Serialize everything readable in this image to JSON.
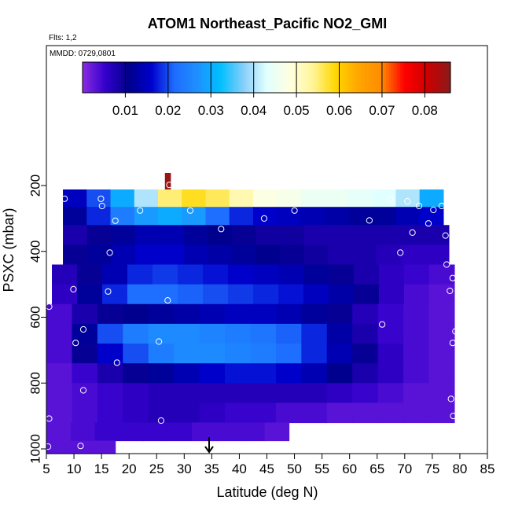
{
  "title": "ATOM1 Northeast_Pacific NO2_GMI",
  "flights_note": "Flts: 1,2",
  "mmdd_note": "MMDD: 0729,0801",
  "chart_data": {
    "type": "heatmap",
    "title": "ATOM1 Northeast_Pacific NO2_GMI",
    "xlabel": "Latitude (deg N)",
    "ylabel": "PSXC (mbar)",
    "xlim": [
      5,
      85
    ],
    "ylim": [
      1000,
      100
    ],
    "x_ticks": [
      "5",
      "10",
      "15",
      "20",
      "25",
      "30",
      "35",
      "40",
      "45",
      "50",
      "55",
      "60",
      "65",
      "70",
      "75",
      "80",
      "85"
    ],
    "y_ticks": [
      "200",
      "400",
      "600",
      "800",
      "1000"
    ],
    "colorbar": {
      "ticks": [
        "0.01",
        "0.02",
        "0.03",
        "0.04",
        "0.05",
        "0.06",
        "0.07",
        "0.08"
      ],
      "range": [
        0,
        0.086
      ],
      "colors": [
        "#8a2be2",
        "#3300cc",
        "#00008b",
        "#0000cd",
        "#1e6cff",
        "#1e90ff",
        "#00bfff",
        "#87cefa",
        "#e0ffff",
        "#ffffe0",
        "#fff59a",
        "#ffd700",
        "#ffa500",
        "#ff8c00",
        "#ff0000",
        "#cc0000",
        "#8b1a1a"
      ]
    },
    "grid": false,
    "levels": [
      {
        "p": 200,
        "x_start": 26.5,
        "x_end": 27.5,
        "values": [
          0.085
        ]
      },
      {
        "p": 240,
        "x_start": 8,
        "x_end": 77,
        "values": [
          0.015,
          0.02,
          0.03,
          0.04,
          0.055,
          0.058,
          0.056,
          0.052,
          0.048,
          0.047,
          0.045,
          0.045,
          0.044,
          0.043,
          0.04,
          0.03
        ]
      },
      {
        "p": 290,
        "x_start": 8,
        "x_end": 77,
        "values": [
          0.012,
          0.018,
          0.024,
          0.028,
          0.03,
          0.028,
          0.022,
          0.018,
          0.016,
          0.015,
          0.014,
          0.013,
          0.012,
          0.012,
          0.014,
          0.016
        ]
      },
      {
        "p": 350,
        "x_start": 8,
        "x_end": 78,
        "values": [
          0.008,
          0.01,
          0.012,
          0.014,
          0.014,
          0.012,
          0.011,
          0.01,
          0.009,
          0.009,
          0.008,
          0.008,
          0.008,
          0.008,
          0.008,
          0.008
        ]
      },
      {
        "p": 410,
        "x_start": 8,
        "x_end": 78,
        "values": [
          0.01,
          0.012,
          0.014,
          0.016,
          0.016,
          0.014,
          0.013,
          0.012,
          0.011,
          0.01,
          0.009,
          0.008,
          0.008,
          0.007,
          0.006,
          0.006
        ]
      },
      {
        "p": 470,
        "x_start": 6,
        "x_end": 79,
        "values": [
          0.007,
          0.01,
          0.014,
          0.018,
          0.019,
          0.018,
          0.017,
          0.016,
          0.015,
          0.014,
          0.012,
          0.01,
          0.008,
          0.006,
          0.005,
          0.004
        ]
      },
      {
        "p": 530,
        "x_start": 6,
        "x_end": 79,
        "values": [
          0.006,
          0.012,
          0.018,
          0.022,
          0.022,
          0.021,
          0.02,
          0.019,
          0.018,
          0.017,
          0.015,
          0.013,
          0.01,
          0.006,
          0.004,
          0.003
        ]
      },
      {
        "p": 590,
        "x_start": 5,
        "x_end": 79,
        "values": [
          0.004,
          0.008,
          0.01,
          0.011,
          0.012,
          0.013,
          0.014,
          0.015,
          0.015,
          0.014,
          0.012,
          0.01,
          0.007,
          0.005,
          0.004,
          0.003
        ]
      },
      {
        "p": 650,
        "x_start": 5,
        "x_end": 79,
        "values": [
          0.004,
          0.012,
          0.02,
          0.024,
          0.026,
          0.026,
          0.025,
          0.024,
          0.023,
          0.021,
          0.018,
          0.013,
          0.008,
          0.005,
          0.004,
          0.003
        ]
      },
      {
        "p": 710,
        "x_start": 5,
        "x_end": 79,
        "values": [
          0.004,
          0.01,
          0.016,
          0.02,
          0.024,
          0.026,
          0.026,
          0.025,
          0.024,
          0.022,
          0.018,
          0.014,
          0.01,
          0.006,
          0.004,
          0.003
        ]
      },
      {
        "p": 770,
        "x_start": 5,
        "x_end": 79,
        "values": [
          0.003,
          0.005,
          0.008,
          0.01,
          0.012,
          0.014,
          0.016,
          0.017,
          0.017,
          0.016,
          0.014,
          0.011,
          0.008,
          0.006,
          0.004,
          0.003
        ]
      },
      {
        "p": 830,
        "x_start": 5,
        "x_end": 79,
        "values": [
          0.003,
          0.004,
          0.005,
          0.006,
          0.007,
          0.007,
          0.007,
          0.007,
          0.007,
          0.007,
          0.007,
          0.006,
          0.005,
          0.004,
          0.003,
          0.003
        ]
      },
      {
        "p": 890,
        "x_start": 5,
        "x_end": 79,
        "values": [
          0.003,
          0.004,
          0.005,
          0.006,
          0.007,
          0.007,
          0.006,
          0.005,
          0.005,
          0.004,
          0.004,
          0.003,
          0.003,
          0.003,
          0.003,
          0.003
        ]
      },
      {
        "p": 950,
        "x_start": 5,
        "x_end": 49,
        "values": [
          0.003,
          0.004,
          0.005,
          0.005,
          0.005,
          0.005,
          0.004,
          0.004,
          0.004,
          0.003
        ]
      },
      {
        "p": 1000,
        "x_start": 5,
        "x_end": 17.5,
        "values": [
          0.003,
          0.003,
          0.003
        ]
      }
    ],
    "observations": [
      {
        "lat": 27.3,
        "p": 198
      },
      {
        "lat": 8.3,
        "p": 240
      },
      {
        "lat": 14.9,
        "p": 240
      },
      {
        "lat": 15.1,
        "p": 262
      },
      {
        "lat": 22.0,
        "p": 276
      },
      {
        "lat": 31.1,
        "p": 276
      },
      {
        "lat": 50.0,
        "p": 276
      },
      {
        "lat": 17.5,
        "p": 307
      },
      {
        "lat": 44.5,
        "p": 300
      },
      {
        "lat": 63.6,
        "p": 306
      },
      {
        "lat": 70.5,
        "p": 248
      },
      {
        "lat": 72.6,
        "p": 262
      },
      {
        "lat": 75.2,
        "p": 274
      },
      {
        "lat": 76.7,
        "p": 262
      },
      {
        "lat": 67.3,
        "p": 241
      },
      {
        "lat": 74.3,
        "p": 315
      },
      {
        "lat": 36.7,
        "p": 332
      },
      {
        "lat": 71.4,
        "p": 343
      },
      {
        "lat": 77.4,
        "p": 352
      },
      {
        "lat": 16.5,
        "p": 404
      },
      {
        "lat": 69.2,
        "p": 404
      },
      {
        "lat": 77.6,
        "p": 440
      },
      {
        "lat": 78.7,
        "p": 481
      },
      {
        "lat": 9.9,
        "p": 515
      },
      {
        "lat": 16.2,
        "p": 522
      },
      {
        "lat": 78.2,
        "p": 520
      },
      {
        "lat": 27.0,
        "p": 549
      },
      {
        "lat": 5.5,
        "p": 568
      },
      {
        "lat": 65.9,
        "p": 622
      },
      {
        "lat": 11.7,
        "p": 637
      },
      {
        "lat": 79.2,
        "p": 643
      },
      {
        "lat": 10.3,
        "p": 678
      },
      {
        "lat": 25.4,
        "p": 674
      },
      {
        "lat": 78.7,
        "p": 678
      },
      {
        "lat": 17.8,
        "p": 738
      },
      {
        "lat": 11.7,
        "p": 822
      },
      {
        "lat": 78.4,
        "p": 848
      },
      {
        "lat": 78.8,
        "p": 900
      },
      {
        "lat": 5.5,
        "p": 908
      },
      {
        "lat": 25.8,
        "p": 914
      },
      {
        "lat": 5.3,
        "p": 993
      },
      {
        "lat": 11.2,
        "p": 991
      },
      {
        "lat": 18.2,
        "p": 993
      },
      {
        "lat": 19.0,
        "p": 993
      }
    ],
    "arrow_latitude": 35
  }
}
